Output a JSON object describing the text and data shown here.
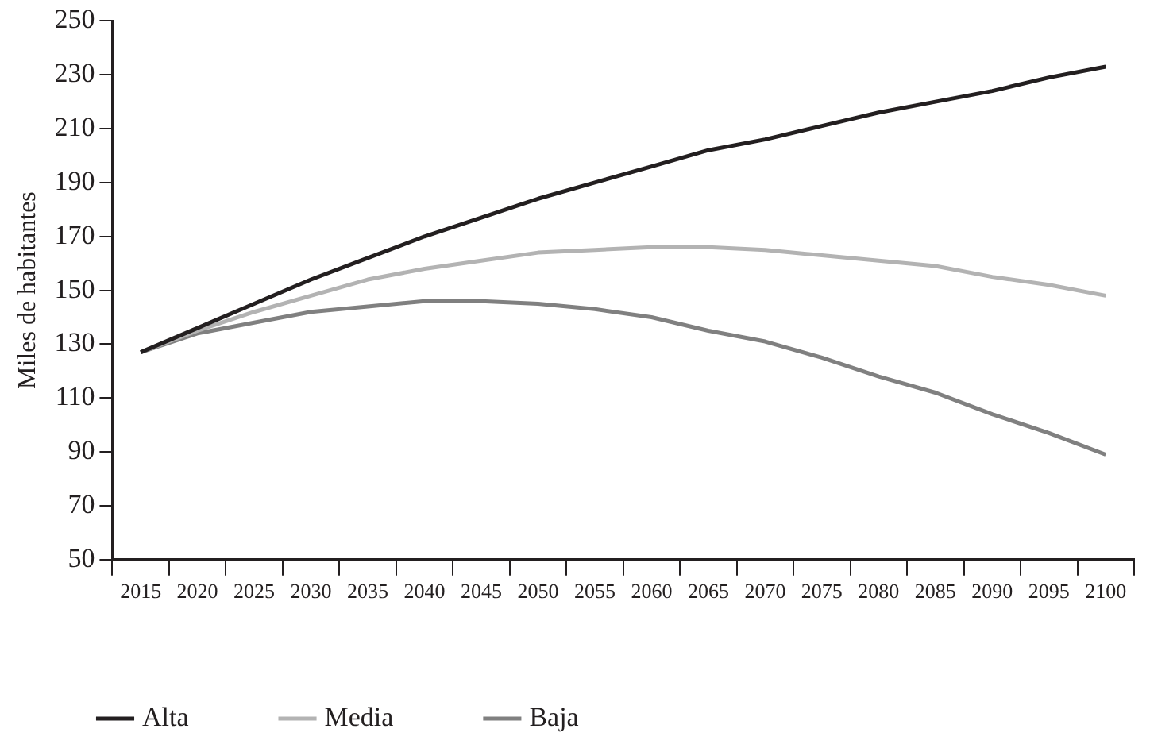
{
  "chart_data": {
    "type": "line",
    "ylabel": "Miles de habitantes",
    "categories": [
      "2015",
      "2020",
      "2025",
      "2030",
      "2035",
      "2040",
      "2045",
      "2050",
      "2055",
      "2060",
      "2065",
      "2070",
      "2075",
      "2080",
      "2085",
      "2090",
      "2095",
      "2100"
    ],
    "series": [
      {
        "name": "Alta",
        "color": "#231f20",
        "values": [
          127,
          136,
          145,
          154,
          162,
          170,
          177,
          184,
          190,
          196,
          202,
          206,
          211,
          216,
          220,
          224,
          229,
          233
        ]
      },
      {
        "name": "Media",
        "color": "#b3b3b3",
        "values": [
          127,
          135,
          142,
          148,
          154,
          158,
          161,
          164,
          165,
          166,
          166,
          165,
          163,
          161,
          159,
          155,
          152,
          148
        ]
      },
      {
        "name": "Baja",
        "color": "#808080",
        "values": [
          127,
          134,
          138,
          142,
          144,
          146,
          146,
          145,
          143,
          140,
          135,
          131,
          125,
          118,
          112,
          104,
          97,
          89
        ]
      }
    ],
    "ylim": [
      50,
      250
    ],
    "yticks": [
      50,
      70,
      90,
      110,
      130,
      150,
      170,
      190,
      210,
      230,
      250
    ],
    "grid": false,
    "legend": "bottom left",
    "marker": "none",
    "line_style": "solid"
  }
}
